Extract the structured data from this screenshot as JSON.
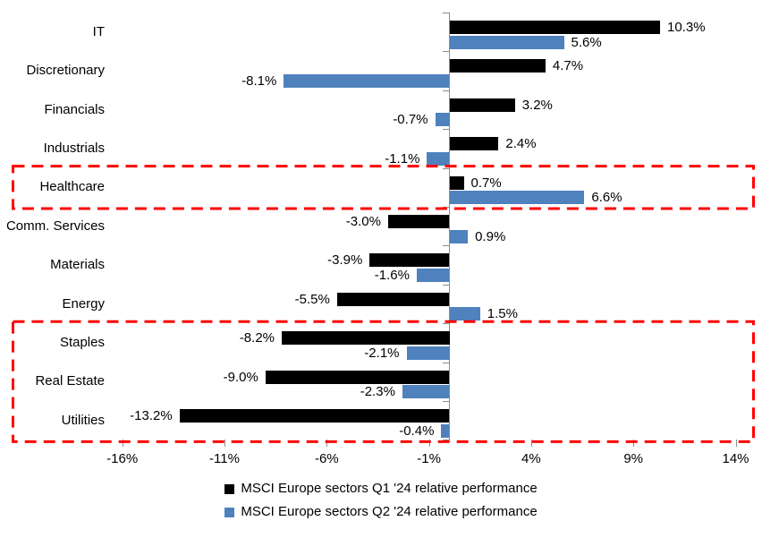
{
  "chart_data": {
    "type": "bar",
    "orientation": "horizontal",
    "title": "",
    "categories": [
      "IT",
      "Discretionary",
      "Financials",
      "Industrials",
      "Healthcare",
      "Comm. Services",
      "Materials",
      "Energy",
      "Staples",
      "Real Estate",
      "Utilities"
    ],
    "series": [
      {
        "name": "MSCI Europe sectors Q1 '24 relative performance",
        "color": "#000000",
        "values": [
          10.3,
          4.7,
          3.2,
          2.4,
          0.7,
          -3.0,
          -3.9,
          -5.5,
          -8.2,
          -9.0,
          -13.2
        ]
      },
      {
        "name": "MSCI Europe sectors Q2 '24 relative performance",
        "color": "#4F81BD",
        "values": [
          5.6,
          -8.1,
          -0.7,
          -1.1,
          6.6,
          0.9,
          -1.6,
          1.5,
          -2.1,
          -2.3,
          -0.4
        ]
      }
    ],
    "data_labels": {
      "q1": [
        "10.3%",
        "4.7%",
        "3.2%",
        "2.4%",
        "0.7%",
        "-3.0%",
        "-3.9%",
        "-5.5%",
        "-8.2%",
        "-9.0%",
        "-13.2%"
      ],
      "q2": [
        "5.6%",
        "-8.1%",
        "-0.7%",
        "-1.1%",
        "6.6%",
        "0.9%",
        "-1.6%",
        "1.5%",
        "-2.1%",
        "-2.3%",
        "-0.4%"
      ]
    },
    "x_ticks": [
      "-16%",
      "-11%",
      "-6%",
      "-1%",
      "4%",
      "9%",
      "14%"
    ],
    "x_tick_values": [
      -16,
      -11,
      -6,
      -1,
      4,
      9,
      14
    ],
    "xlim": [
      -16,
      14
    ],
    "grid": false,
    "legend_position": "bottom",
    "axis_color": "#8c8c8c",
    "annotations": [
      {
        "shape": "dashed-rect",
        "color": "#FF0000",
        "label": "healthcare-highlight",
        "row_start": 4,
        "row_end": 4
      },
      {
        "shape": "dashed-rect",
        "color": "#FF0000",
        "label": "defensives-highlight",
        "row_start": 8,
        "row_end": 10
      }
    ]
  }
}
